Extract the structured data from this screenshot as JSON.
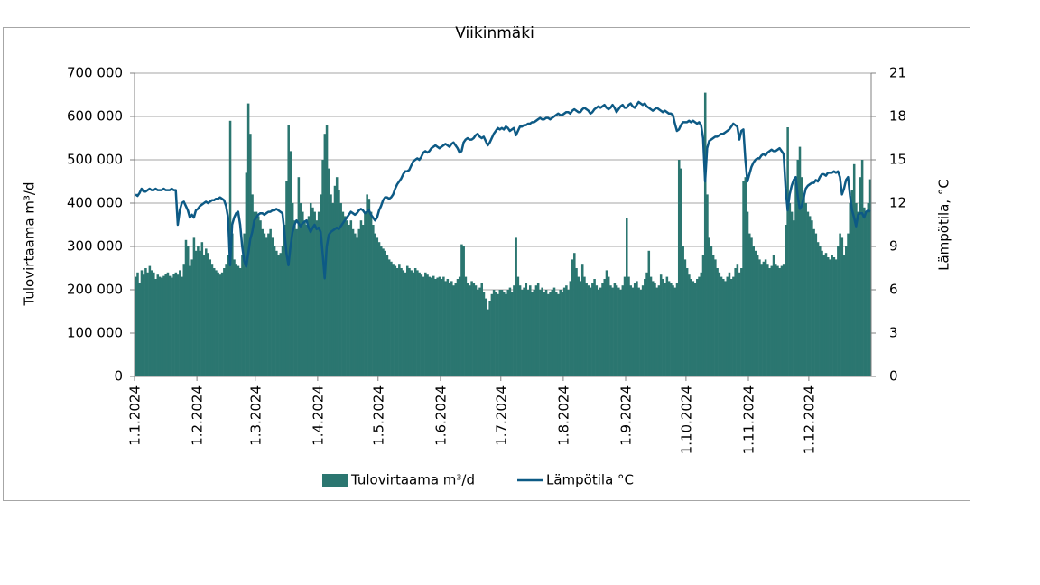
{
  "chart_data": {
    "type": "bar",
    "title": "Viikinmäki",
    "y_label": "Tulovirtaama m³/d",
    "y2_label": "Lämpötila, °C",
    "ylim": [
      0,
      700000
    ],
    "yticks": [
      0,
      {
        "value": 100000,
        "label": "100 000"
      },
      {
        "value": 200000,
        "label": "200 000"
      },
      {
        "value": 300000,
        "label": "300 000"
      },
      {
        "value": 400000,
        "label": "400 000"
      },
      {
        "value": 500000,
        "label": "500 000"
      },
      {
        "value": 600000,
        "label": "600 000"
      },
      {
        "value": 700000,
        "label": "700 000"
      }
    ],
    "y2lim": [
      0,
      21
    ],
    "y2ticks": [
      0,
      3,
      6,
      9,
      12,
      15,
      18,
      21
    ],
    "grid": true,
    "legend": "bottom",
    "categories": [
      "1.1.2024",
      null,
      null,
      null,
      null,
      null,
      null,
      null,
      null,
      null,
      null,
      null,
      null,
      null,
      null,
      null,
      null,
      null,
      null,
      null,
      null,
      null,
      null,
      null,
      null,
      null,
      null,
      null,
      null,
      null,
      null,
      "1.2.2024",
      null,
      null,
      null,
      null,
      null,
      null,
      null,
      null,
      null,
      null,
      null,
      null,
      null,
      null,
      null,
      null,
      null,
      null,
      null,
      null,
      null,
      null,
      null,
      null,
      null,
      null,
      null,
      null,
      "1.3.2024",
      null,
      null,
      null,
      null,
      null,
      null,
      null,
      null,
      null,
      null,
      null,
      null,
      null,
      null,
      null,
      null,
      null,
      null,
      null,
      null,
      null,
      null,
      null,
      null,
      null,
      null,
      null,
      null,
      null,
      null,
      "1.4.2024",
      null,
      null,
      null,
      null,
      null,
      null,
      null,
      null,
      null,
      null,
      null,
      null,
      null,
      null,
      null,
      null,
      null,
      null,
      null,
      null,
      null,
      null,
      null,
      null,
      null,
      null,
      null,
      null,
      null,
      "1.5.2024",
      null,
      null,
      null,
      null,
      null,
      null,
      null,
      null,
      null,
      null,
      null,
      null,
      null,
      null,
      null,
      null,
      null,
      null,
      null,
      null,
      null,
      null,
      null,
      null,
      null,
      null,
      null,
      null,
      null,
      null,
      "1.6.2024",
      null,
      null,
      null,
      null,
      null,
      null,
      null,
      null,
      null,
      null,
      null,
      null,
      null,
      null,
      null,
      null,
      null,
      null,
      null,
      null,
      null,
      null,
      null,
      null,
      null,
      null,
      null,
      null,
      null,
      "1.7.2024",
      null,
      null,
      null,
      null,
      null,
      null,
      null,
      null,
      null,
      null,
      null,
      null,
      null,
      null,
      null,
      null,
      null,
      null,
      null,
      null,
      null,
      null,
      null,
      null,
      null,
      null,
      null,
      null,
      null,
      null,
      "1.8.2024",
      null,
      null,
      null,
      null,
      null,
      null,
      null,
      null,
      null,
      null,
      null,
      null,
      null,
      null,
      null,
      null,
      null,
      null,
      null,
      null,
      null,
      null,
      null,
      null,
      null,
      null,
      null,
      null,
      null,
      null,
      "1.9.2024",
      null,
      null,
      null,
      null,
      null,
      null,
      null,
      null,
      null,
      null,
      null,
      null,
      null,
      null,
      null,
      null,
      null,
      null,
      null,
      null,
      null,
      null,
      null,
      null,
      null,
      null,
      null,
      null,
      null,
      "1.10.2024",
      null,
      null,
      null,
      null,
      null,
      null,
      null,
      null,
      null,
      null,
      null,
      null,
      null,
      null,
      null,
      null,
      null,
      null,
      null,
      null,
      null,
      null,
      null,
      null,
      null,
      null,
      null,
      null,
      null,
      null,
      "1.11.2024",
      null,
      null,
      null,
      null,
      null,
      null,
      null,
      null,
      null,
      null,
      null,
      null,
      null,
      null,
      null,
      null,
      null,
      null,
      null,
      null,
      null,
      null,
      null,
      null,
      null,
      null,
      null,
      null,
      null,
      "1.12.2024",
      null,
      null,
      null,
      null,
      null,
      null,
      null,
      null,
      null,
      null,
      null,
      null,
      null,
      null,
      null,
      null,
      null,
      null,
      null,
      null,
      null,
      null,
      null,
      null,
      null,
      null,
      null,
      null,
      null,
      null
    ],
    "series": [
      {
        "name": "Tulovirtaama m³/d",
        "type": "bar",
        "axis": "y",
        "color": "#2b7670",
        "values": [
          230000,
          240000,
          215000,
          245000,
          235000,
          250000,
          240000,
          255000,
          245000,
          240000,
          225000,
          235000,
          230000,
          228000,
          232000,
          236000,
          240000,
          232000,
          228000,
          236000,
          240000,
          235000,
          245000,
          230000,
          260000,
          315000,
          300000,
          255000,
          270000,
          320000,
          290000,
          300000,
          290000,
          310000,
          280000,
          295000,
          285000,
          270000,
          260000,
          250000,
          245000,
          240000,
          235000,
          240000,
          250000,
          260000,
          280000,
          590000,
          330000,
          270000,
          260000,
          255000,
          250000,
          280000,
          330000,
          470000,
          630000,
          560000,
          420000,
          380000,
          380000,
          370000,
          360000,
          340000,
          330000,
          320000,
          330000,
          340000,
          320000,
          300000,
          290000,
          280000,
          285000,
          300000,
          350000,
          450000,
          580000,
          520000,
          400000,
          360000,
          340000,
          460000,
          400000,
          380000,
          360000,
          350000,
          370000,
          400000,
          390000,
          380000,
          360000,
          380000,
          420000,
          500000,
          560000,
          580000,
          480000,
          420000,
          400000,
          440000,
          460000,
          430000,
          400000,
          380000,
          370000,
          360000,
          350000,
          360000,
          340000,
          330000,
          320000,
          340000,
          360000,
          350000,
          380000,
          420000,
          410000,
          380000,
          350000,
          330000,
          320000,
          310000,
          300000,
          295000,
          290000,
          280000,
          270000,
          265000,
          260000,
          255000,
          250000,
          260000,
          250000,
          245000,
          240000,
          255000,
          250000,
          245000,
          240000,
          250000,
          245000,
          240000,
          235000,
          230000,
          240000,
          235000,
          230000,
          228000,
          232000,
          225000,
          228000,
          230000,
          225000,
          230000,
          220000,
          225000,
          215000,
          220000,
          210000,
          215000,
          225000,
          230000,
          305000,
          300000,
          230000,
          215000,
          210000,
          220000,
          215000,
          210000,
          200000,
          205000,
          215000,
          195000,
          180000,
          155000,
          175000,
          190000,
          200000,
          195000,
          190000,
          200000,
          200000,
          195000,
          190000,
          200000,
          205000,
          195000,
          210000,
          320000,
          230000,
          210000,
          200000,
          205000,
          215000,
          200000,
          210000,
          195000,
          200000,
          210000,
          215000,
          200000,
          205000,
          195000,
          200000,
          190000,
          195000,
          200000,
          205000,
          195000,
          190000,
          200000,
          195000,
          205000,
          210000,
          200000,
          220000,
          270000,
          285000,
          250000,
          230000,
          220000,
          260000,
          230000,
          215000,
          210000,
          205000,
          215000,
          225000,
          210000,
          200000,
          205000,
          215000,
          225000,
          245000,
          230000,
          210000,
          205000,
          215000,
          210000,
          205000,
          200000,
          210000,
          230000,
          365000,
          230000,
          210000,
          205000,
          215000,
          220000,
          205000,
          200000,
          210000,
          225000,
          240000,
          290000,
          230000,
          220000,
          215000,
          205000,
          210000,
          235000,
          225000,
          215000,
          230000,
          220000,
          215000,
          210000,
          205000,
          215000,
          500000,
          480000,
          300000,
          270000,
          250000,
          235000,
          225000,
          220000,
          215000,
          225000,
          230000,
          240000,
          280000,
          655000,
          420000,
          320000,
          300000,
          280000,
          270000,
          250000,
          240000,
          230000,
          225000,
          220000,
          230000,
          240000,
          225000,
          230000,
          250000,
          260000,
          240000,
          250000,
          450000,
          460000,
          380000,
          330000,
          320000,
          300000,
          290000,
          280000,
          270000,
          260000,
          265000,
          270000,
          260000,
          250000,
          255000,
          280000,
          260000,
          255000,
          250000,
          255000,
          260000,
          350000,
          575000,
          400000,
          380000,
          360000,
          460000,
          500000,
          530000,
          460000,
          420000,
          400000,
          380000,
          370000,
          360000,
          340000,
          330000,
          310000,
          300000,
          290000,
          280000,
          285000,
          275000,
          270000,
          280000,
          275000,
          270000,
          300000,
          330000,
          320000,
          280000,
          300000,
          330000,
          400000,
          430000,
          490000,
          400000,
          380000,
          460000,
          500000,
          390000,
          380000,
          400000,
          455000
        ]
      },
      {
        "name": "Lämpötila °C",
        "type": "line",
        "axis": "y2",
        "color": "#0d5a85",
        "values": [
          12.6,
          12.5,
          12.7,
          13.0,
          12.8,
          12.8,
          12.9,
          13.0,
          12.9,
          12.9,
          13.0,
          12.9,
          12.9,
          12.9,
          13.0,
          12.9,
          12.9,
          12.9,
          13.0,
          12.9,
          12.9,
          10.5,
          11.5,
          12.0,
          12.1,
          11.8,
          11.5,
          11.0,
          11.2,
          11.0,
          11.5,
          11.6,
          11.8,
          11.9,
          12.0,
          12.1,
          12.0,
          12.1,
          12.2,
          12.2,
          12.3,
          12.3,
          12.4,
          12.3,
          12.2,
          11.8,
          11.0,
          7.7,
          10.5,
          11.0,
          11.3,
          11.4,
          10.5,
          9.0,
          8.0,
          7.6,
          8.5,
          9.5,
          10.0,
          10.8,
          11.0,
          11.2,
          11.3,
          11.3,
          11.2,
          11.3,
          11.4,
          11.4,
          11.5,
          11.5,
          11.6,
          11.5,
          11.4,
          11.3,
          10.0,
          8.5,
          7.7,
          9.0,
          10.0,
          10.5,
          10.8,
          10.6,
          10.4,
          10.6,
          10.7,
          10.8,
          10.3,
          10.0,
          10.3,
          10.5,
          10.2,
          10.3,
          10.0,
          8.5,
          6.8,
          9.0,
          9.8,
          10.0,
          10.1,
          10.2,
          10.3,
          10.2,
          10.4,
          10.6,
          10.8,
          11.0,
          11.2,
          11.4,
          11.3,
          11.2,
          11.3,
          11.5,
          11.6,
          11.5,
          11.3,
          11.4,
          11.5,
          11.2,
          11.0,
          10.8,
          11.0,
          11.5,
          11.8,
          12.2,
          12.4,
          12.4,
          12.3,
          12.4,
          12.6,
          13.0,
          13.3,
          13.5,
          13.7,
          14.0,
          14.2,
          14.2,
          14.3,
          14.6,
          14.9,
          15.0,
          15.1,
          15.0,
          15.2,
          15.5,
          15.6,
          15.5,
          15.6,
          15.8,
          15.9,
          16.0,
          15.9,
          15.8,
          15.9,
          16.0,
          16.1,
          16.0,
          15.9,
          16.1,
          16.2,
          16.0,
          15.8,
          15.5,
          15.6,
          16.2,
          16.4,
          16.5,
          16.4,
          16.4,
          16.5,
          16.7,
          16.8,
          16.6,
          16.5,
          16.6,
          16.3,
          16.0,
          16.2,
          16.5,
          16.8,
          17.0,
          17.2,
          17.1,
          17.2,
          17.1,
          17.3,
          17.2,
          17.0,
          17.1,
          17.2,
          16.7,
          17.0,
          17.3,
          17.3,
          17.4,
          17.4,
          17.5,
          17.5,
          17.6,
          17.6,
          17.7,
          17.8,
          17.9,
          17.8,
          17.8,
          17.9,
          17.9,
          17.8,
          17.9,
          18.0,
          18.1,
          18.2,
          18.1,
          18.1,
          18.2,
          18.3,
          18.3,
          18.2,
          18.4,
          18.5,
          18.4,
          18.3,
          18.3,
          18.5,
          18.6,
          18.5,
          18.4,
          18.2,
          18.3,
          18.5,
          18.6,
          18.7,
          18.6,
          18.7,
          18.8,
          18.6,
          18.5,
          18.6,
          18.8,
          18.6,
          18.3,
          18.5,
          18.7,
          18.8,
          18.6,
          18.6,
          18.8,
          18.9,
          18.7,
          18.6,
          18.8,
          19.0,
          18.9,
          18.8,
          18.9,
          18.7,
          18.6,
          18.5,
          18.4,
          18.5,
          18.6,
          18.5,
          18.4,
          18.3,
          18.4,
          18.3,
          18.2,
          18.2,
          18.1,
          17.5,
          17.0,
          17.1,
          17.4,
          17.6,
          17.6,
          17.6,
          17.7,
          17.6,
          17.7,
          17.6,
          17.5,
          17.6,
          17.4,
          16.5,
          13.5,
          15.8,
          16.3,
          16.4,
          16.5,
          16.6,
          16.6,
          16.7,
          16.8,
          16.8,
          16.9,
          17.0,
          17.1,
          17.3,
          17.5,
          17.4,
          17.3,
          16.4,
          17.0,
          17.1,
          15.0,
          13.5,
          14.0,
          14.5,
          14.8,
          15.0,
          15.1,
          15.1,
          15.3,
          15.4,
          15.3,
          15.5,
          15.6,
          15.7,
          15.6,
          15.6,
          15.7,
          15.8,
          15.6,
          15.4,
          13.0,
          11.5,
          12.6,
          13.2,
          13.6,
          13.8,
          12.5,
          11.6,
          11.8,
          12.4,
          13.0,
          13.2,
          13.3,
          13.4,
          13.4,
          13.6,
          13.5,
          13.8,
          14.0,
          14.0,
          13.9,
          14.1,
          14.1,
          14.1,
          14.2,
          14.1,
          14.2,
          13.8,
          12.6,
          13.0,
          13.6,
          13.8,
          12.5,
          11.5,
          11.0,
          10.4,
          11.2,
          11.3,
          11.3,
          11.0,
          11.4,
          11.5,
          11.4
        ]
      }
    ]
  }
}
